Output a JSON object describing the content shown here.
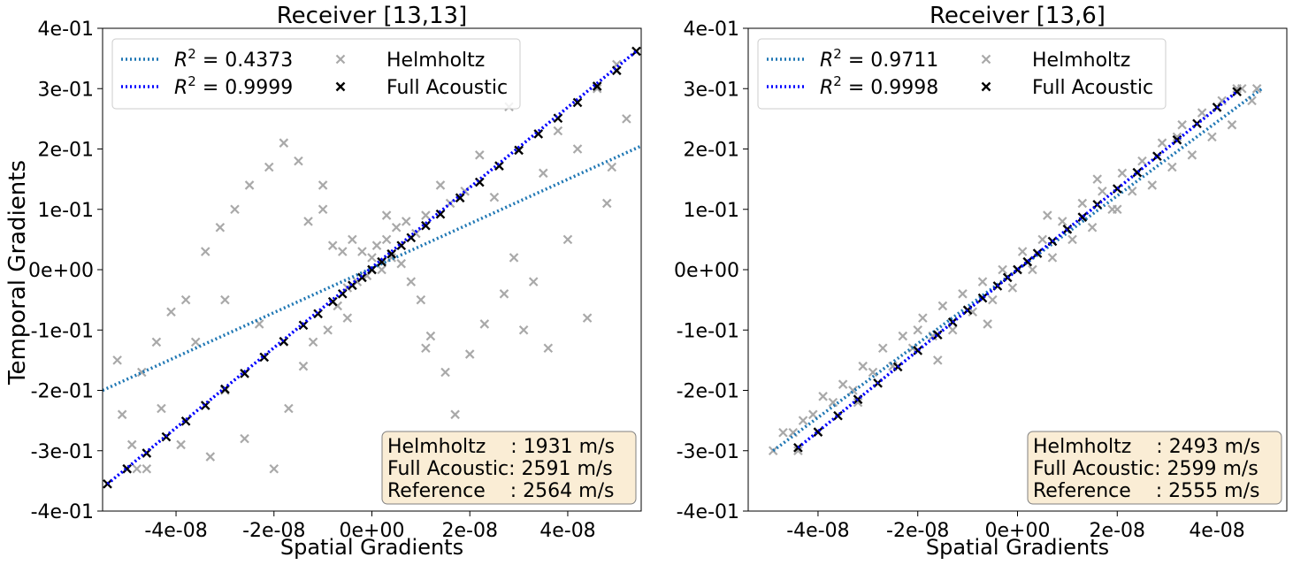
{
  "figure": {
    "ylabel": "Temporal Gradients"
  },
  "chart_data": [
    {
      "type": "scatter",
      "title": "Receiver [13,13]",
      "xlabel": "Spatial Gradients",
      "ylabel": "Temporal Gradients",
      "xlim": [
        -5.5e-08,
        5.5e-08
      ],
      "ylim": [
        -0.4,
        0.4
      ],
      "xticks": [
        -4e-08,
        -2e-08,
        0,
        2e-08,
        4e-08
      ],
      "xtick_labels": [
        "-4e-08",
        "-2e-08",
        "0e+00",
        "2e-08",
        "4e-08"
      ],
      "yticks": [
        -0.4,
        -0.3,
        -0.2,
        -0.1,
        0,
        0.1,
        0.2,
        0.3,
        0.4
      ],
      "ytick_labels": [
        "-4e-01",
        "-3e-01",
        "-2e-01",
        "-1e-01",
        "0e+00",
        "1e-01",
        "2e-01",
        "3e-01",
        "4e-01"
      ],
      "legend": {
        "placement": "top-left",
        "entries": [
          {
            "label": "R² = 0.4373",
            "label_prefix": "R",
            "label_sup": "2",
            "label_suffix": " = 0.4373",
            "marker": "dotted-line",
            "color": "#1f77b4"
          },
          {
            "label": "R² = 0.9999",
            "label_prefix": "R",
            "label_sup": "2",
            "label_suffix": " = 0.9999",
            "marker": "dotted-line",
            "color": "#0000ff"
          },
          {
            "label": "Helmholtz",
            "marker": "x",
            "color": "#a9a9a9"
          },
          {
            "label": "Full Acoustic",
            "marker": "x",
            "color": "#000000"
          }
        ]
      },
      "info_box": {
        "placement": "bottom-right",
        "lines": [
          "Helmholtz    : 1931 m/s",
          "Full Acoustic: 2591 m/s",
          "Reference    : 2564 m/s"
        ]
      },
      "series": [
        {
          "name": "Helmholtz",
          "marker": "x",
          "color": "#a9a9a9",
          "points": [
            [
              -5.2e-08,
              -0.15
            ],
            [
              -5.1e-08,
              -0.24
            ],
            [
              -4.9e-08,
              -0.29
            ],
            [
              -4.7e-08,
              -0.17
            ],
            [
              -4.6e-08,
              -0.33
            ],
            [
              -4.4e-08,
              -0.12
            ],
            [
              -4.3e-08,
              -0.23
            ],
            [
              -4.1e-08,
              -0.07
            ],
            [
              -3.9e-08,
              -0.29
            ],
            [
              -3.8e-08,
              -0.05
            ],
            [
              -3.6e-08,
              -0.12
            ],
            [
              -3.4e-08,
              0.03
            ],
            [
              -3.3e-08,
              -0.31
            ],
            [
              -3.1e-08,
              0.07
            ],
            [
              -3e-08,
              -0.2
            ],
            [
              -2.8e-08,
              0.1
            ],
            [
              -2.6e-08,
              -0.28
            ],
            [
              -2.5e-08,
              0.14
            ],
            [
              -2.3e-08,
              -0.09
            ],
            [
              -2.1e-08,
              0.17
            ],
            [
              -2e-08,
              -0.33
            ],
            [
              -1.8e-08,
              0.21
            ],
            [
              -1.7e-08,
              -0.23
            ],
            [
              -1.5e-08,
              0.18
            ],
            [
              -1.4e-08,
              -0.16
            ],
            [
              -1.3e-08,
              0.08
            ],
            [
              -1.2e-08,
              -0.12
            ],
            [
              -1e-08,
              0.1
            ],
            [
              -9e-09,
              -0.1
            ],
            [
              -8e-09,
              0.04
            ],
            [
              -7e-09,
              -0.06
            ],
            [
              -6e-09,
              0.03
            ],
            [
              -5e-09,
              -0.03
            ],
            [
              -4e-09,
              0.05
            ],
            [
              -3e-09,
              -0.02
            ],
            [
              -2e-09,
              0.03
            ],
            [
              -1e-09,
              -0.01
            ],
            [
              0,
              0.02
            ],
            [
              1e-09,
              0.04
            ],
            [
              2e-09,
              0.0
            ],
            [
              3e-09,
              0.05
            ],
            [
              4e-09,
              0.02
            ],
            [
              5e-09,
              0.07
            ],
            [
              6e-09,
              0.01
            ],
            [
              7e-09,
              0.08
            ],
            [
              8e-09,
              -0.02
            ],
            [
              9e-09,
              0.06
            ],
            [
              1e-08,
              -0.05
            ],
            [
              1.1e-08,
              0.09
            ],
            [
              1.2e-08,
              -0.11
            ],
            [
              1.4e-08,
              0.14
            ],
            [
              1.5e-08,
              -0.17
            ],
            [
              1.6e-08,
              0.11
            ],
            [
              1.7e-08,
              -0.24
            ],
            [
              1.9e-08,
              0.13
            ],
            [
              2e-08,
              -0.14
            ],
            [
              2.2e-08,
              0.19
            ],
            [
              2.3e-08,
              -0.09
            ],
            [
              2.5e-08,
              0.12
            ],
            [
              2.7e-08,
              -0.04
            ],
            [
              2.9e-08,
              0.02
            ],
            [
              3.1e-08,
              -0.1
            ],
            [
              3.3e-08,
              -0.02
            ],
            [
              3.5e-08,
              0.16
            ],
            [
              3.6e-08,
              -0.13
            ],
            [
              3.8e-08,
              0.23
            ],
            [
              4e-08,
              0.05
            ],
            [
              4.2e-08,
              0.2
            ],
            [
              4.4e-08,
              -0.08
            ],
            [
              4.6e-08,
              0.3
            ],
            [
              4.8e-08,
              0.11
            ],
            [
              5e-08,
              0.34
            ],
            [
              5.2e-08,
              0.25
            ],
            [
              -5e-09,
              -0.08
            ],
            [
              3e-09,
              0.09
            ],
            [
              -1e-08,
              0.14
            ],
            [
              1.1e-08,
              -0.13
            ],
            [
              -3e-08,
              -0.05
            ],
            [
              2.8e-08,
              0.27
            ],
            [
              -4.8e-08,
              -0.33
            ],
            [
              4.9e-08,
              0.17
            ]
          ]
        },
        {
          "name": "Full Acoustic",
          "marker": "x",
          "color": "#000000",
          "points": [
            [
              -5.4e-08,
              -0.355
            ],
            [
              -5e-08,
              -0.33
            ],
            [
              -4.6e-08,
              -0.304
            ],
            [
              -4.2e-08,
              -0.277
            ],
            [
              -3.8e-08,
              -0.251
            ],
            [
              -3.4e-08,
              -0.225
            ],
            [
              -3e-08,
              -0.198
            ],
            [
              -2.6e-08,
              -0.172
            ],
            [
              -2.2e-08,
              -0.145
            ],
            [
              -1.8e-08,
              -0.119
            ],
            [
              -1.4e-08,
              -0.092
            ],
            [
              -1.1e-08,
              -0.073
            ],
            [
              -8e-09,
              -0.053
            ],
            [
              -6e-09,
              -0.04
            ],
            [
              -4e-09,
              -0.026
            ],
            [
              -2e-09,
              -0.013
            ],
            [
              0,
              0.0
            ],
            [
              2e-09,
              0.013
            ],
            [
              4e-09,
              0.026
            ],
            [
              6e-09,
              0.04
            ],
            [
              8e-09,
              0.053
            ],
            [
              1.1e-08,
              0.073
            ],
            [
              1.4e-08,
              0.092
            ],
            [
              1.8e-08,
              0.119
            ],
            [
              2.2e-08,
              0.145
            ],
            [
              2.6e-08,
              0.172
            ],
            [
              3e-08,
              0.198
            ],
            [
              3.4e-08,
              0.225
            ],
            [
              3.8e-08,
              0.251
            ],
            [
              4.2e-08,
              0.277
            ],
            [
              4.6e-08,
              0.304
            ],
            [
              5e-08,
              0.33
            ],
            [
              5.4e-08,
              0.362
            ]
          ]
        }
      ],
      "fit_lines": [
        {
          "name": "R² = 0.4373",
          "color": "#1f77b4",
          "x": [
            -5.5e-08,
            5.5e-08
          ],
          "y": [
            -0.2,
            0.205
          ]
        },
        {
          "name": "R² = 0.9999",
          "color": "#0000ff",
          "x": [
            -5.4e-08,
            5.4e-08
          ],
          "y": [
            -0.355,
            0.362
          ]
        }
      ]
    },
    {
      "type": "scatter",
      "title": "Receiver [13,6]",
      "xlabel": "Spatial Gradients",
      "ylabel": "",
      "xlim": [
        -5.4e-08,
        5.4e-08
      ],
      "ylim": [
        -0.4,
        0.4
      ],
      "xticks": [
        -4e-08,
        -2e-08,
        0,
        2e-08,
        4e-08
      ],
      "xtick_labels": [
        "-4e-08",
        "-2e-08",
        "0e+00",
        "2e-08",
        "4e-08"
      ],
      "yticks": [
        -0.4,
        -0.3,
        -0.2,
        -0.1,
        0,
        0.1,
        0.2,
        0.3,
        0.4
      ],
      "ytick_labels": [
        "-4e-01",
        "-3e-01",
        "-2e-01",
        "-1e-01",
        "0e+00",
        "1e-01",
        "2e-01",
        "3e-01",
        "4e-01"
      ],
      "legend": {
        "placement": "top-left",
        "entries": [
          {
            "label": "R² = 0.9711",
            "label_prefix": "R",
            "label_sup": "2",
            "label_suffix": " = 0.9711",
            "marker": "dotted-line",
            "color": "#1f77b4"
          },
          {
            "label": "R² = 0.9998",
            "label_prefix": "R",
            "label_sup": "2",
            "label_suffix": " = 0.9998",
            "marker": "dotted-line",
            "color": "#0000ff"
          },
          {
            "label": "Helmholtz",
            "marker": "x",
            "color": "#a9a9a9"
          },
          {
            "label": "Full Acoustic",
            "marker": "x",
            "color": "#000000"
          }
        ]
      },
      "info_box": {
        "placement": "bottom-right",
        "lines": [
          "Helmholtz    : 2493 m/s",
          "Full Acoustic: 2599 m/s",
          "Reference    : 2555 m/s"
        ]
      },
      "series": [
        {
          "name": "Helmholtz",
          "marker": "x",
          "color": "#a9a9a9",
          "points": [
            [
              -4.9e-08,
              -0.3
            ],
            [
              -4.7e-08,
              -0.27
            ],
            [
              -4.5e-08,
              -0.27
            ],
            [
              -4.3e-08,
              -0.25
            ],
            [
              -4.1e-08,
              -0.24
            ],
            [
              -3.9e-08,
              -0.21
            ],
            [
              -3.7e-08,
              -0.22
            ],
            [
              -3.5e-08,
              -0.19
            ],
            [
              -3.3e-08,
              -0.2
            ],
            [
              -3.1e-08,
              -0.16
            ],
            [
              -2.9e-08,
              -0.17
            ],
            [
              -2.7e-08,
              -0.13
            ],
            [
              -2.5e-08,
              -0.16
            ],
            [
              -2.3e-08,
              -0.11
            ],
            [
              -2.1e-08,
              -0.13
            ],
            [
              -1.9e-08,
              -0.08
            ],
            [
              -1.7e-08,
              -0.11
            ],
            [
              -1.5e-08,
              -0.06
            ],
            [
              -1.3e-08,
              -0.1
            ],
            [
              -1.1e-08,
              -0.04
            ],
            [
              -9e-09,
              -0.07
            ],
            [
              -7e-09,
              -0.02
            ],
            [
              -5e-09,
              -0.05
            ],
            [
              -3e-09,
              0.0
            ],
            [
              -1e-09,
              -0.03
            ],
            [
              1e-09,
              0.03
            ],
            [
              3e-09,
              0.0
            ],
            [
              5e-09,
              0.05
            ],
            [
              7e-09,
              0.02
            ],
            [
              9e-09,
              0.08
            ],
            [
              1.1e-08,
              0.05
            ],
            [
              1.3e-08,
              0.11
            ],
            [
              1.5e-08,
              0.07
            ],
            [
              1.7e-08,
              0.13
            ],
            [
              1.9e-08,
              0.1
            ],
            [
              2.1e-08,
              0.16
            ],
            [
              2.3e-08,
              0.13
            ],
            [
              2.5e-08,
              0.18
            ],
            [
              2.7e-08,
              0.14
            ],
            [
              2.9e-08,
              0.21
            ],
            [
              3.1e-08,
              0.17
            ],
            [
              3.3e-08,
              0.24
            ],
            [
              3.5e-08,
              0.19
            ],
            [
              3.7e-08,
              0.26
            ],
            [
              3.9e-08,
              0.22
            ],
            [
              4.1e-08,
              0.28
            ],
            [
              4.3e-08,
              0.24
            ],
            [
              4.5e-08,
              0.3
            ],
            [
              4.7e-08,
              0.28
            ],
            [
              4.8e-08,
              0.3
            ],
            [
              -4.4e-08,
              -0.3
            ],
            [
              -3.2e-08,
              -0.22
            ],
            [
              -2e-08,
              -0.1
            ],
            [
              -1.6e-08,
              -0.15
            ],
            [
              -6e-09,
              -0.09
            ],
            [
              6e-09,
              0.09
            ],
            [
              1.6e-08,
              0.15
            ],
            [
              2e-08,
              0.1
            ],
            [
              3.2e-08,
              0.22
            ],
            [
              4.4e-08,
              0.3
            ]
          ]
        },
        {
          "name": "Full Acoustic",
          "marker": "x",
          "color": "#000000",
          "points": [
            [
              -4.4e-08,
              -0.295
            ],
            [
              -4e-08,
              -0.269
            ],
            [
              -3.6e-08,
              -0.242
            ],
            [
              -3.2e-08,
              -0.215
            ],
            [
              -2.8e-08,
              -0.188
            ],
            [
              -2.4e-08,
              -0.161
            ],
            [
              -2e-08,
              -0.134
            ],
            [
              -1.6e-08,
              -0.108
            ],
            [
              -1.3e-08,
              -0.087
            ],
            [
              -1e-08,
              -0.067
            ],
            [
              -7e-09,
              -0.047
            ],
            [
              -4e-09,
              -0.027
            ],
            [
              -2e-09,
              -0.013
            ],
            [
              0,
              0.0
            ],
            [
              2e-09,
              0.013
            ],
            [
              4e-09,
              0.027
            ],
            [
              7e-09,
              0.047
            ],
            [
              1e-08,
              0.067
            ],
            [
              1.3e-08,
              0.087
            ],
            [
              1.6e-08,
              0.108
            ],
            [
              2e-08,
              0.134
            ],
            [
              2.4e-08,
              0.161
            ],
            [
              2.8e-08,
              0.188
            ],
            [
              3.2e-08,
              0.215
            ],
            [
              3.6e-08,
              0.242
            ],
            [
              4e-08,
              0.269
            ],
            [
              4.4e-08,
              0.295
            ]
          ]
        }
      ],
      "fit_lines": [
        {
          "name": "R² = 0.9711",
          "color": "#1f77b4",
          "x": [
            -4.9e-08,
            4.9e-08
          ],
          "y": [
            -0.3,
            0.3
          ]
        },
        {
          "name": "R² = 0.9998",
          "color": "#0000ff",
          "x": [
            -4.4e-08,
            4.4e-08
          ],
          "y": [
            -0.295,
            0.295
          ]
        }
      ]
    }
  ]
}
